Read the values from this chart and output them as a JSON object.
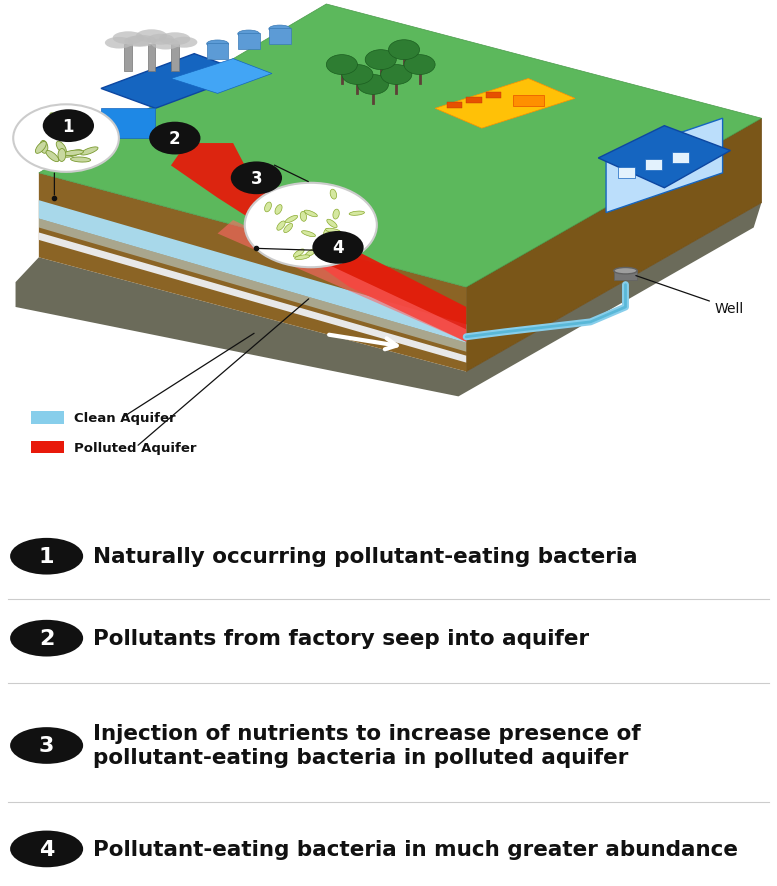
{
  "background_color": "#ffffff",
  "figure_width": 7.77,
  "figure_height": 8.87,
  "dpi": 100,
  "numbered_items": [
    {
      "number": "1",
      "text": "Naturally occurring pollutant-eating bacteria"
    },
    {
      "number": "2",
      "text": "Pollutants from factory seep into aquifer"
    },
    {
      "number": "3",
      "text": "Injection of nutrients to increase presence of\npollutant-eating bacteria in polluted aquifer"
    },
    {
      "number": "4",
      "text": "Pollutant-eating bacteria in much greater abundance"
    }
  ],
  "circle_color": "#111111",
  "text_color": "#111111",
  "legend_clean_color": "#87CEEB",
  "legend_polluted_color": "#e8190a",
  "soil_color_front": "#8B6425",
  "soil_color_right": "#7a5618",
  "soil_color_top": "#5a7a20",
  "rock_color": "#7a7a62",
  "aquifer_clean_color": "#a8d8ea",
  "aquifer_polluted_color": "#e8190a",
  "green_surface_color": "#5cb85c"
}
